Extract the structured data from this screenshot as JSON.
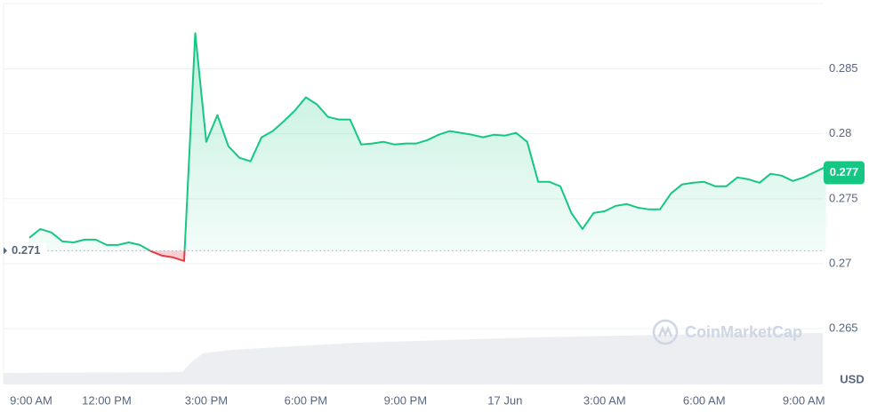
{
  "chart_data": {
    "type": "line",
    "categories": [
      "9:00 AM",
      null,
      null,
      null,
      null,
      null,
      null,
      null,
      null,
      "12:00 PM",
      null,
      null,
      null,
      null,
      null,
      null,
      null,
      null,
      "3:00 PM",
      null,
      null,
      null,
      null,
      null,
      null,
      null,
      null,
      "6:00 PM",
      null,
      null,
      null,
      null,
      null,
      null,
      null,
      null,
      "9:00 PM",
      null,
      null,
      null,
      null,
      null,
      null,
      null,
      null,
      "17 Jun",
      null,
      null,
      null,
      null,
      null,
      null,
      null,
      null,
      "3:00 AM",
      null,
      null,
      null,
      null,
      null,
      null,
      null,
      null,
      "6:00 AM",
      null,
      null,
      null,
      null,
      null,
      null,
      null,
      null,
      "9:00 AM",
      null,
      null
    ],
    "values": [
      null,
      null,
      0.27199,
      0.27267,
      0.2724,
      0.27171,
      0.27164,
      0.27185,
      0.27185,
      0.27144,
      0.27144,
      0.27164,
      0.27144,
      0.27096,
      0.27062,
      0.27048,
      0.27021,
      0.28774,
      0.27938,
      0.28144,
      0.27904,
      0.27815,
      0.27788,
      0.27973,
      0.28021,
      0.28096,
      0.28178,
      0.28281,
      0.28226,
      0.2813,
      0.2811,
      0.2811,
      0.27918,
      0.27925,
      0.27938,
      0.27918,
      0.27925,
      0.27925,
      0.27952,
      0.27993,
      0.28021,
      0.28007,
      0.27993,
      0.27973,
      0.27993,
      0.27986,
      0.28007,
      0.27938,
      0.2763,
      0.2763,
      0.27596,
      0.2739,
      0.27267,
      0.2739,
      0.27404,
      0.27445,
      0.27459,
      0.27432,
      0.27418,
      0.27418,
      0.27541,
      0.2761,
      0.27623,
      0.2763,
      0.27596,
      0.27596,
      0.27664,
      0.2765,
      0.27623,
      0.27692,
      0.27678,
      0.27637,
      0.27664,
      0.27705,
      0.27747
    ],
    "color": "#16c784",
    "color_below": "#ea3943",
    "reference": 0.271,
    "current": 0.277,
    "ylim": [
      0.2607,
      0.2903
    ],
    "yticks": [
      0.265,
      0.27,
      0.275,
      0.28,
      0.285
    ],
    "y_unit": "USD",
    "watermark": "CoinMarketCap",
    "grid": true
  }
}
